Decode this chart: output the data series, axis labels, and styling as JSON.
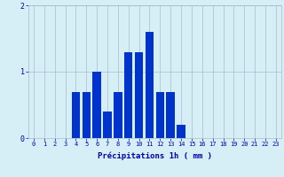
{
  "hours": [
    0,
    1,
    2,
    3,
    4,
    5,
    6,
    7,
    8,
    9,
    10,
    11,
    12,
    13,
    14,
    15,
    16,
    17,
    18,
    19,
    20,
    21,
    22,
    23
  ],
  "values": [
    0,
    0,
    0,
    0,
    0.7,
    0.7,
    1.0,
    0.4,
    0.7,
    1.3,
    1.3,
    1.6,
    0.7,
    0.7,
    0.2,
    0,
    0,
    0,
    0,
    0,
    0,
    0,
    0,
    0
  ],
  "bar_color": "#0033cc",
  "background_color": "#d6eef5",
  "grid_color": "#aabbcc",
  "axis_color": "#0000aa",
  "xlabel": "Précipitations 1h ( mm )",
  "ylim": [
    0,
    2
  ],
  "yticks": [
    0,
    1,
    2
  ],
  "xlim": [
    -0.5,
    23.5
  ],
  "tick_fontsize": 5.0,
  "xlabel_fontsize": 6.5
}
